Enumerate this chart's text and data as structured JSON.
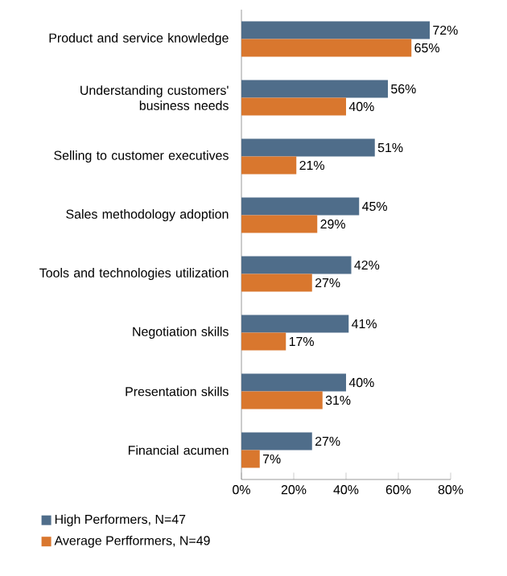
{
  "chart_data": {
    "type": "bar",
    "orientation": "horizontal",
    "categories": [
      "Product and service knowledge",
      "Understanding customers' business needs",
      "Selling to customer executives",
      "Sales methodology adoption",
      "Tools and technologies utilization",
      "Negotiation skills",
      "Presentation skills",
      "Financial acumen"
    ],
    "series": [
      {
        "name": "High Performers, N=47",
        "color": "#4f6d8a",
        "values": [
          72,
          56,
          51,
          45,
          42,
          41,
          40,
          27
        ],
        "value_labels": [
          "72%",
          "56%",
          "51%",
          "45%",
          "42%",
          "41%",
          "40%",
          "27%"
        ]
      },
      {
        "name": "Average Perfformers, N=49",
        "color": "#d9772e",
        "values": [
          65,
          40,
          21,
          29,
          27,
          17,
          31,
          7
        ],
        "value_labels": [
          "65%",
          "40%",
          "21%",
          "29%",
          "27%",
          "17%",
          "31%",
          "7%"
        ]
      }
    ],
    "xlim": [
      0,
      80
    ],
    "xticks": [
      {
        "value": 0,
        "label": "0%"
      },
      {
        "value": 20,
        "label": "20%"
      },
      {
        "value": 40,
        "label": "40%"
      },
      {
        "value": 60,
        "label": "60%"
      },
      {
        "value": 80,
        "label": "80%"
      }
    ],
    "legend": "bottom left"
  }
}
